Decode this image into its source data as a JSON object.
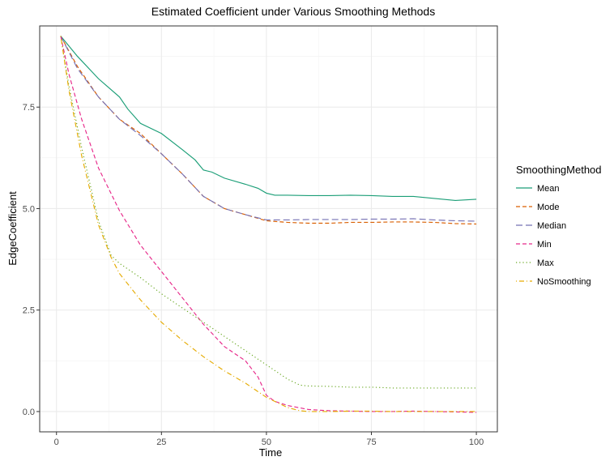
{
  "chart_data": {
    "type": "line",
    "title": "Estimated Coefficient under Various Smoothing Methods",
    "xlabel": "Time",
    "ylabel": "EdgeCoefficient",
    "xlim": [
      -4,
      105
    ],
    "ylim": [
      -0.5,
      9.5
    ],
    "x_ticks": [
      0,
      25,
      50,
      75,
      100
    ],
    "x_tick_labels": [
      "0",
      "25",
      "50",
      "75",
      "100"
    ],
    "y_ticks": [
      0,
      2.5,
      5,
      7.5
    ],
    "y_tick_labels": [
      "0.0",
      "2.5",
      "5.0",
      "7.5"
    ],
    "grid": true,
    "legend": {
      "title": "SmoothingMethod",
      "position": "right"
    },
    "series": [
      {
        "name": "Mean",
        "color": "#1b9e77",
        "dash": "solid",
        "x": [
          1,
          5,
          10,
          15,
          17,
          20,
          25,
          30,
          33,
          35,
          37,
          40,
          45,
          48,
          50,
          52,
          55,
          60,
          65,
          70,
          75,
          80,
          85,
          90,
          95,
          100
        ],
        "y": [
          9.25,
          8.75,
          8.2,
          7.75,
          7.45,
          7.1,
          6.85,
          6.45,
          6.2,
          5.95,
          5.9,
          5.75,
          5.6,
          5.5,
          5.38,
          5.33,
          5.33,
          5.32,
          5.32,
          5.33,
          5.32,
          5.3,
          5.3,
          5.25,
          5.2,
          5.23
        ]
      },
      {
        "name": "Mode",
        "color": "#d95f02",
        "dash": "dashed",
        "x": [
          1,
          5,
          10,
          15,
          20,
          25,
          30,
          35,
          40,
          45,
          50,
          55,
          60,
          65,
          70,
          75,
          80,
          85,
          90,
          95,
          100
        ],
        "y": [
          9.25,
          8.5,
          7.75,
          7.2,
          6.85,
          6.35,
          5.85,
          5.3,
          5.0,
          4.85,
          4.7,
          4.66,
          4.64,
          4.64,
          4.66,
          4.66,
          4.67,
          4.67,
          4.66,
          4.63,
          4.62
        ]
      },
      {
        "name": "Median",
        "color": "#7570b3",
        "dash": "longdash",
        "x": [
          1,
          5,
          10,
          15,
          20,
          25,
          30,
          35,
          40,
          45,
          50,
          55,
          60,
          65,
          70,
          75,
          80,
          85,
          90,
          95,
          100
        ],
        "y": [
          9.25,
          8.45,
          7.75,
          7.2,
          6.8,
          6.35,
          5.85,
          5.3,
          5.0,
          4.85,
          4.72,
          4.72,
          4.73,
          4.73,
          4.73,
          4.74,
          4.74,
          4.75,
          4.72,
          4.7,
          4.69
        ]
      },
      {
        "name": "Min",
        "color": "#e7298a",
        "dash": "dashed",
        "x": [
          1,
          3,
          6,
          10,
          15,
          20,
          25,
          30,
          35,
          40,
          45,
          48,
          50,
          52,
          55,
          60,
          65,
          70,
          75,
          80,
          85,
          90,
          95,
          100
        ],
        "y": [
          9.25,
          8.3,
          7.2,
          6.0,
          4.95,
          4.1,
          3.45,
          2.8,
          2.15,
          1.6,
          1.25,
          0.85,
          0.4,
          0.25,
          0.15,
          0.05,
          0.02,
          0.01,
          0.0,
          0.0,
          0.01,
          0.0,
          -0.01,
          -0.02
        ]
      },
      {
        "name": "Max",
        "color": "#66a61e",
        "dash": "dotted",
        "x": [
          1,
          3,
          6,
          10,
          13,
          15,
          20,
          25,
          30,
          35,
          40,
          45,
          50,
          55,
          58,
          60,
          65,
          70,
          75,
          80,
          85,
          90,
          95,
          100
        ],
        "y": [
          9.25,
          8.0,
          6.5,
          4.7,
          3.85,
          3.65,
          3.3,
          2.9,
          2.55,
          2.2,
          1.85,
          1.5,
          1.15,
          0.8,
          0.65,
          0.63,
          0.62,
          0.6,
          0.6,
          0.58,
          0.58,
          0.58,
          0.58,
          0.58
        ]
      },
      {
        "name": "NoSmoothing",
        "color": "#e6ab02",
        "dash": "dotdash",
        "x": [
          1,
          3,
          6,
          10,
          13,
          15,
          20,
          25,
          30,
          35,
          40,
          45,
          50,
          55,
          58,
          60,
          65,
          70,
          75,
          80,
          85,
          90,
          95,
          100
        ],
        "y": [
          9.25,
          7.9,
          6.3,
          4.6,
          3.8,
          3.4,
          2.75,
          2.2,
          1.75,
          1.35,
          1.0,
          0.7,
          0.35,
          0.1,
          0.02,
          0.0,
          0.0,
          0.01,
          0.01,
          0.0,
          0.0,
          0.0,
          0.0,
          0.0
        ]
      }
    ]
  }
}
